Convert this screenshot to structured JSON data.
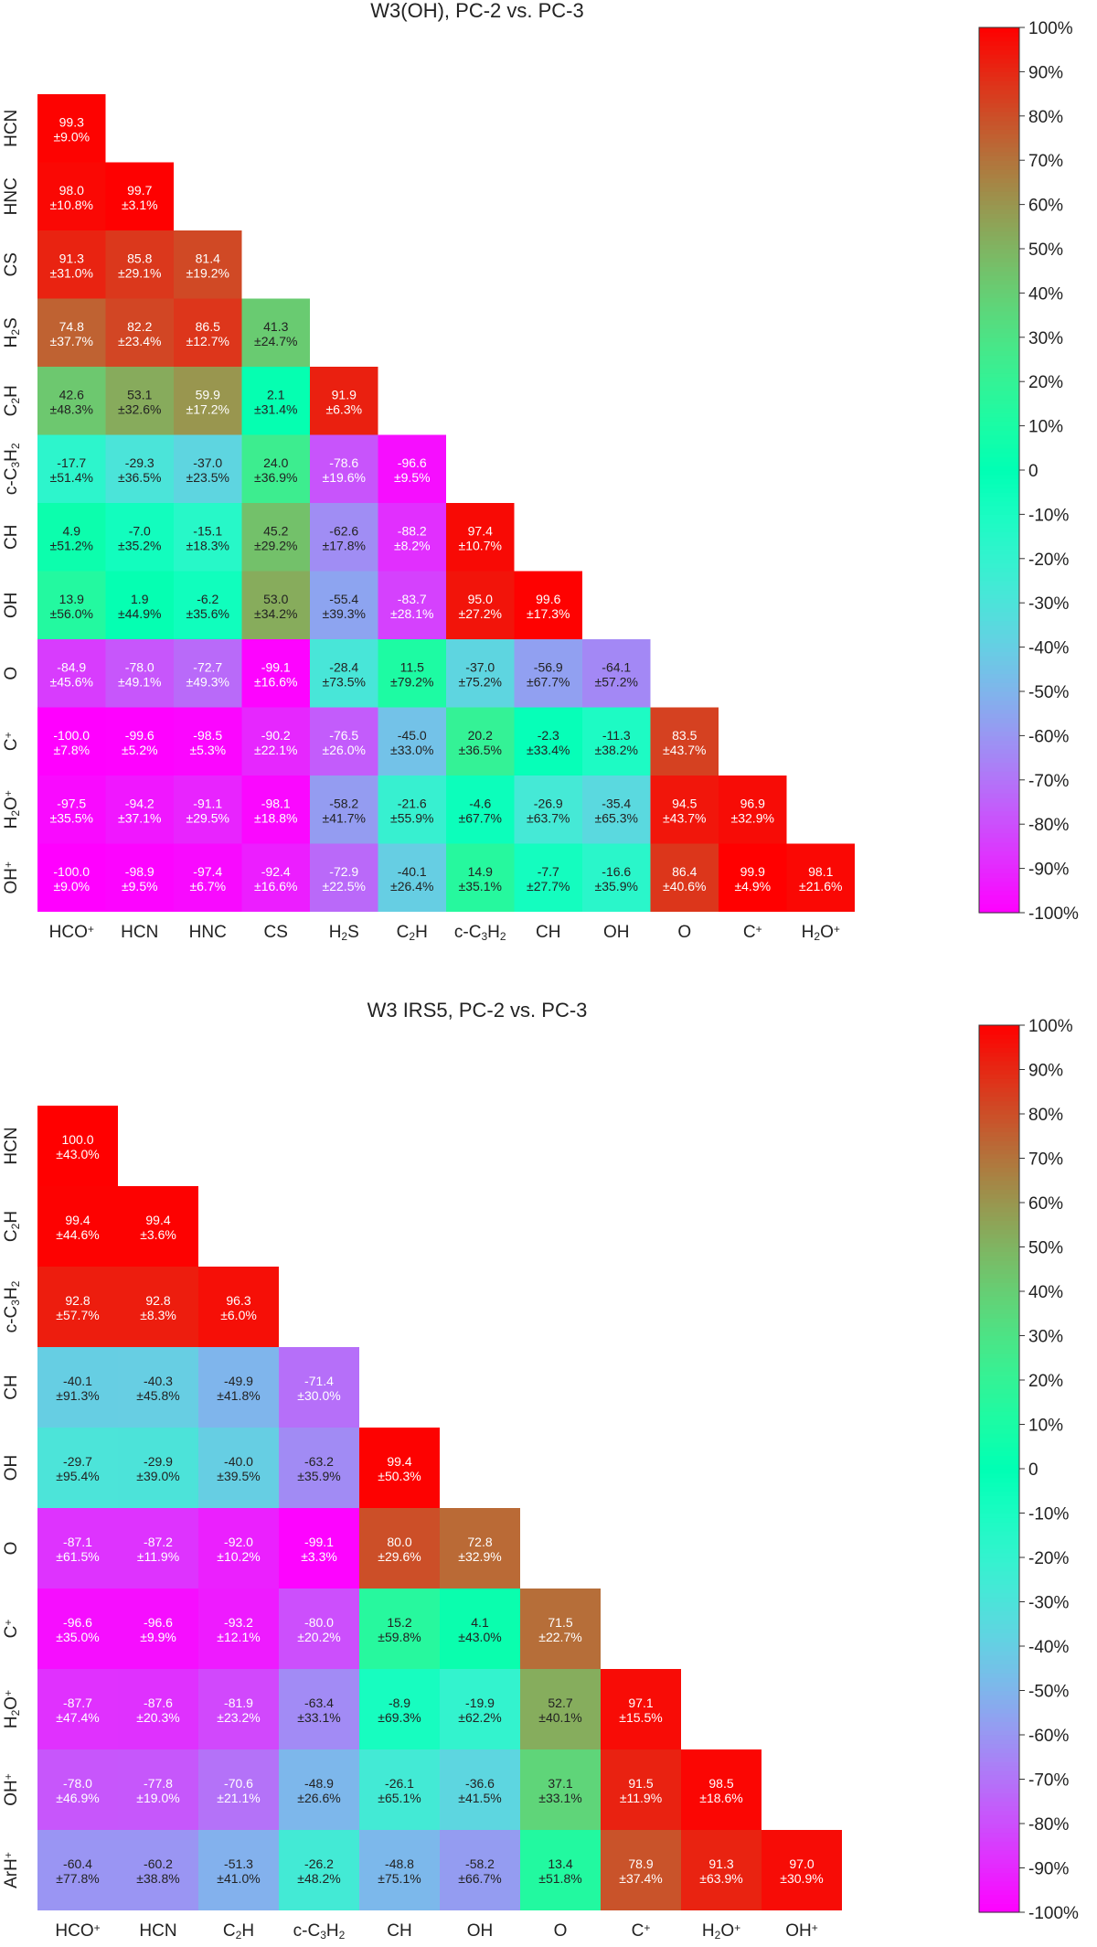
{
  "chart_data": [
    {
      "type": "heatmap",
      "title": "W3(OH), PC-2 vs. PC-3",
      "row_labels": [
        [
          [
            "HCN",
            ""
          ]
        ],
        [
          [
            "HNC",
            ""
          ]
        ],
        [
          [
            "CS",
            ""
          ]
        ],
        [
          [
            "H",
            ""
          ],
          [
            "2",
            "sub"
          ],
          [
            "S",
            ""
          ]
        ],
        [
          [
            "C",
            ""
          ],
          [
            "2",
            "sub"
          ],
          [
            "H",
            ""
          ]
        ],
        [
          [
            "c-C",
            ""
          ],
          [
            "3",
            "sub"
          ],
          [
            "H",
            ""
          ],
          [
            "2",
            "sub"
          ]
        ],
        [
          [
            "CH",
            ""
          ]
        ],
        [
          [
            "OH",
            ""
          ]
        ],
        [
          [
            "O",
            ""
          ]
        ],
        [
          [
            "C",
            ""
          ],
          [
            "+",
            "sup"
          ]
        ],
        [
          [
            "H",
            ""
          ],
          [
            "2",
            "sub"
          ],
          [
            "O",
            ""
          ],
          [
            "+",
            "sup"
          ]
        ],
        [
          [
            "OH",
            ""
          ],
          [
            "+",
            "sup"
          ]
        ]
      ],
      "col_labels": [
        [
          [
            "HCO",
            ""
          ],
          [
            "+",
            "sup"
          ]
        ],
        [
          [
            "HCN",
            ""
          ]
        ],
        [
          [
            "HNC",
            ""
          ]
        ],
        [
          [
            "CS",
            ""
          ]
        ],
        [
          [
            "H",
            ""
          ],
          [
            "2",
            "sub"
          ],
          [
            "S",
            ""
          ]
        ],
        [
          [
            "C",
            ""
          ],
          [
            "2",
            "sub"
          ],
          [
            "H",
            ""
          ]
        ],
        [
          [
            "c-C",
            ""
          ],
          [
            "3",
            "sub"
          ],
          [
            "H",
            ""
          ],
          [
            "2",
            "sub"
          ]
        ],
        [
          [
            "CH",
            ""
          ]
        ],
        [
          [
            "OH",
            ""
          ]
        ],
        [
          [
            "O",
            ""
          ]
        ],
        [
          [
            "C",
            ""
          ],
          [
            "+",
            "sup"
          ]
        ],
        [
          [
            "H",
            ""
          ],
          [
            "2",
            "sub"
          ],
          [
            "O",
            ""
          ],
          [
            "+",
            "sup"
          ]
        ]
      ],
      "values": [
        [
          99.3
        ],
        [
          98.0,
          99.7
        ],
        [
          91.3,
          85.8,
          81.4
        ],
        [
          74.8,
          82.2,
          86.5,
          41.3
        ],
        [
          42.6,
          53.1,
          59.9,
          2.1,
          91.9
        ],
        [
          -17.7,
          -29.3,
          -37.0,
          24.0,
          -78.6,
          -96.6
        ],
        [
          4.9,
          -7.0,
          -15.1,
          45.2,
          -62.6,
          -88.2,
          97.4
        ],
        [
          13.9,
          1.9,
          -6.2,
          53.0,
          -55.4,
          -83.7,
          95.0,
          99.6
        ],
        [
          -84.9,
          -78.0,
          -72.7,
          -99.1,
          -28.4,
          11.5,
          -37.0,
          -56.9,
          -64.1
        ],
        [
          -100.0,
          -99.6,
          -98.5,
          -90.2,
          -76.5,
          -45.0,
          20.2,
          -2.3,
          -11.3,
          83.5
        ],
        [
          -97.5,
          -94.2,
          -91.1,
          -98.1,
          -58.2,
          -21.6,
          -4.6,
          -26.9,
          -35.4,
          94.5,
          96.9
        ],
        [
          -100.0,
          -98.9,
          -97.4,
          -92.4,
          -72.9,
          -40.1,
          14.9,
          -7.7,
          -16.6,
          86.4,
          99.9,
          98.1
        ]
      ],
      "errors": [
        [
          9.0
        ],
        [
          10.8,
          3.1
        ],
        [
          31.0,
          29.1,
          19.2
        ],
        [
          37.7,
          23.4,
          12.7,
          24.7
        ],
        [
          48.3,
          32.6,
          17.2,
          31.4,
          6.3
        ],
        [
          51.4,
          36.5,
          23.5,
          36.9,
          19.6,
          9.5
        ],
        [
          51.2,
          35.2,
          18.3,
          29.2,
          17.8,
          8.2,
          10.7
        ],
        [
          56.0,
          44.9,
          35.6,
          34.2,
          39.3,
          28.1,
          27.2,
          17.3
        ],
        [
          45.6,
          49.1,
          49.3,
          16.6,
          73.5,
          79.2,
          75.2,
          67.7,
          57.2
        ],
        [
          7.8,
          5.2,
          5.3,
          22.1,
          26.0,
          33.0,
          36.5,
          33.4,
          38.2,
          43.7
        ],
        [
          35.5,
          37.1,
          29.5,
          18.8,
          41.7,
          55.9,
          67.7,
          63.7,
          65.3,
          43.7,
          32.9
        ],
        [
          9.0,
          9.5,
          6.7,
          16.6,
          22.5,
          26.4,
          35.1,
          27.7,
          35.9,
          40.6,
          4.9,
          21.6
        ]
      ],
      "value_unit": "",
      "colorbar": {
        "range": [
          -100,
          100
        ],
        "ticks": [
          "100%",
          "90%",
          "80%",
          "70%",
          "60%",
          "50%",
          "40%",
          "30%",
          "20%",
          "10%",
          "0",
          "-10%",
          "-20%",
          "-30%",
          "-40%",
          "-50%",
          "-60%",
          "-70%",
          "-80%",
          "-90%",
          "-100%"
        ],
        "colormap": "rainbow"
      }
    },
    {
      "type": "heatmap",
      "title": "W3 IRS5, PC-2 vs. PC-3",
      "row_labels": [
        [
          [
            "HCN",
            ""
          ]
        ],
        [
          [
            "C",
            ""
          ],
          [
            "2",
            "sub"
          ],
          [
            "H",
            ""
          ]
        ],
        [
          [
            "c-C",
            ""
          ],
          [
            "3",
            "sub"
          ],
          [
            "H",
            ""
          ],
          [
            "2",
            "sub"
          ]
        ],
        [
          [
            "CH",
            ""
          ]
        ],
        [
          [
            "OH",
            ""
          ]
        ],
        [
          [
            "O",
            ""
          ]
        ],
        [
          [
            "C",
            ""
          ],
          [
            "+",
            "sup"
          ]
        ],
        [
          [
            "H",
            ""
          ],
          [
            "2",
            "sub"
          ],
          [
            "O",
            ""
          ],
          [
            "+",
            "sup"
          ]
        ],
        [
          [
            "OH",
            ""
          ],
          [
            "+",
            "sup"
          ]
        ],
        [
          [
            "ArH",
            ""
          ],
          [
            "+",
            "sup"
          ]
        ]
      ],
      "col_labels": [
        [
          [
            "HCO",
            ""
          ],
          [
            "+",
            "sup"
          ]
        ],
        [
          [
            "HCN",
            ""
          ]
        ],
        [
          [
            "C",
            ""
          ],
          [
            "2",
            "sub"
          ],
          [
            "H",
            ""
          ]
        ],
        [
          [
            "c-C",
            ""
          ],
          [
            "3",
            "sub"
          ],
          [
            "H",
            ""
          ],
          [
            "2",
            "sub"
          ]
        ],
        [
          [
            "CH",
            ""
          ]
        ],
        [
          [
            "OH",
            ""
          ]
        ],
        [
          [
            "O",
            ""
          ]
        ],
        [
          [
            "C",
            ""
          ],
          [
            "+",
            "sup"
          ]
        ],
        [
          [
            "H",
            ""
          ],
          [
            "2",
            "sub"
          ],
          [
            "O",
            ""
          ],
          [
            "+",
            "sup"
          ]
        ],
        [
          [
            "OH",
            ""
          ],
          [
            "+",
            "sup"
          ]
        ]
      ],
      "values": [
        [
          100.0
        ],
        [
          99.4,
          99.4
        ],
        [
          92.8,
          92.8,
          96.3
        ],
        [
          -40.1,
          -40.3,
          -49.9,
          -71.4
        ],
        [
          -29.7,
          -29.9,
          -40.0,
          -63.2,
          99.4
        ],
        [
          -87.1,
          -87.2,
          -92.0,
          -99.1,
          80.0,
          72.8
        ],
        [
          -96.6,
          -96.6,
          -93.2,
          -80.0,
          15.2,
          4.1,
          71.5
        ],
        [
          -87.7,
          -87.6,
          -81.9,
          -63.4,
          -8.9,
          -19.9,
          52.7,
          97.1
        ],
        [
          -78.0,
          -77.8,
          -70.6,
          -48.9,
          -26.1,
          -36.6,
          37.1,
          91.5,
          98.5
        ],
        [
          -60.4,
          -60.2,
          -51.3,
          -26.2,
          -48.8,
          -58.2,
          13.4,
          78.9,
          91.3,
          97.0
        ]
      ],
      "errors": [
        [
          43.0
        ],
        [
          44.6,
          3.6
        ],
        [
          57.7,
          8.3,
          6.0
        ],
        [
          91.3,
          45.8,
          41.8,
          30.0
        ],
        [
          95.4,
          39.0,
          39.5,
          35.9,
          50.3
        ],
        [
          61.5,
          11.9,
          10.2,
          3.3,
          29.6,
          32.9
        ],
        [
          35.0,
          9.9,
          12.1,
          20.2,
          59.8,
          43.0,
          22.7
        ],
        [
          47.4,
          20.3,
          23.2,
          33.1,
          69.3,
          62.2,
          40.1,
          15.5
        ],
        [
          46.9,
          19.0,
          21.1,
          26.6,
          65.1,
          41.5,
          33.1,
          11.9,
          18.6
        ],
        [
          77.8,
          38.8,
          41.0,
          48.2,
          75.1,
          66.7,
          51.8,
          37.4,
          63.9,
          30.9
        ]
      ],
      "colorbar": {
        "range": [
          -100,
          100
        ],
        "ticks": [
          "100%",
          "90%",
          "80%",
          "70%",
          "60%",
          "50%",
          "40%",
          "30%",
          "20%",
          "10%",
          "0",
          "-10%",
          "-20%",
          "-30%",
          "-40%",
          "-50%",
          "-60%",
          "-70%",
          "-80%",
          "-90%",
          "-100%"
        ],
        "colormap": "rainbow"
      }
    }
  ]
}
